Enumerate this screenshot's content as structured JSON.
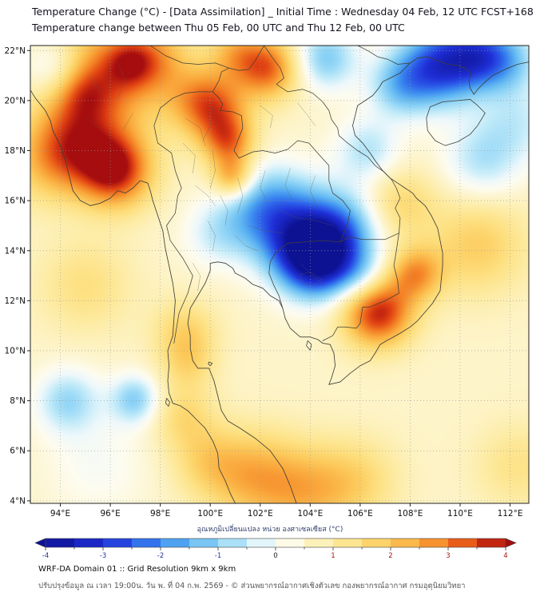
{
  "header": {
    "title_line1": "Temperature Change (°C) - [Data Assimilation] _ Initial Time : Wednesday 04 Feb, 12 UTC FCST+168",
    "title_line2": "Temperature change between Thu 05 Feb, 00 UTC and Thu 12 Feb, 00 UTC"
  },
  "map": {
    "lon_range": [
      92.8,
      112.75
    ],
    "lat_range": [
      3.9,
      22.2
    ],
    "grid_interval_deg": 2,
    "x_ticks": [
      {
        "value": 94,
        "label": "94°E"
      },
      {
        "value": 96,
        "label": "96°E"
      },
      {
        "value": 98,
        "label": "98°E"
      },
      {
        "value": 100,
        "label": "100°E"
      },
      {
        "value": 102,
        "label": "102°E"
      },
      {
        "value": 104,
        "label": "104°E"
      },
      {
        "value": 106,
        "label": "106°E"
      },
      {
        "value": 108,
        "label": "108°E"
      },
      {
        "value": 110,
        "label": "110°E"
      },
      {
        "value": 112,
        "label": "112°E"
      }
    ],
    "y_ticks": [
      {
        "value": 4,
        "label": "4°N"
      },
      {
        "value": 6,
        "label": "6°N"
      },
      {
        "value": 8,
        "label": "8°N"
      },
      {
        "value": 10,
        "label": "10°N"
      },
      {
        "value": 12,
        "label": "12°N"
      },
      {
        "value": 14,
        "label": "14°N"
      },
      {
        "value": 16,
        "label": "16°N"
      },
      {
        "value": 18,
        "label": "18°N"
      },
      {
        "value": 20,
        "label": "20°N"
      },
      {
        "value": 22,
        "label": "22°N"
      }
    ]
  },
  "colorbar": {
    "label": "อุณหภูมิเปลี่ยนแปลง หน่วย องศาเซลเซียส (°C)",
    "min": -4,
    "max": 4,
    "major_ticks": [
      -4,
      -3,
      -2,
      -1,
      0,
      1,
      2,
      3,
      4
    ],
    "minor_tick_step": 0.5,
    "stops": [
      [
        -4,
        "#0d1293"
      ],
      [
        -3,
        "#1f2fd6"
      ],
      [
        -2.5,
        "#2b59e8"
      ],
      [
        -2,
        "#3c8cf0"
      ],
      [
        -1.5,
        "#62b8f2"
      ],
      [
        -1,
        "#8fd4f6"
      ],
      [
        -0.5,
        "#c5ecf9"
      ],
      [
        -0.15,
        "#eef8fb"
      ],
      [
        0.15,
        "#fdfcf0"
      ],
      [
        0.5,
        "#fdf5cf"
      ],
      [
        1,
        "#fdeca4"
      ],
      [
        1.5,
        "#fddf7e"
      ],
      [
        2,
        "#fcc95a"
      ],
      [
        2.5,
        "#faa83c"
      ],
      [
        3,
        "#f27b22"
      ],
      [
        3.5,
        "#df3f12"
      ],
      [
        4,
        "#a50d0f"
      ]
    ],
    "tick_label_colors": {
      "negative": "#2433a0",
      "zero": "#222222",
      "positive": "#9c1408"
    }
  },
  "footer": {
    "line1": "WRF-DA Domain 01 :: Grid Resolution 9km x 9km",
    "line2": "ปรับปรุงข้อมูล ณ เวลา 19:00น. วัน พ. ที่ 04 ก.พ. 2569 - © ส่วนพยากรณ์อากาศเชิงตัวเลข กองพยากรณ์อากาศ กรมอุตุนิยมวิทยา"
  },
  "chart_data": {
    "type": "heatmap",
    "title": "Temperature change (°C) between Thu 05 Feb 00 UTC and Thu 12 Feb 00 UTC",
    "units": "°C",
    "value_range": [
      -4,
      4
    ],
    "base_value": 0.55,
    "anomaly_format": [
      "lon_e",
      "lat_n",
      "peak_c",
      "radius_deg"
    ],
    "anomalies": [
      [
        95.6,
        20.9,
        2.4,
        1.7
      ],
      [
        96.8,
        21.5,
        1.2,
        0.7
      ],
      [
        94.9,
        20.3,
        1.0,
        0.8
      ],
      [
        97.8,
        21.7,
        1.3,
        1.0
      ],
      [
        99.6,
        20.0,
        1.6,
        1.0
      ],
      [
        100.3,
        19.6,
        1.5,
        0.9
      ],
      [
        102.3,
        21.3,
        2.6,
        0.9
      ],
      [
        101.0,
        21.95,
        1.3,
        0.8
      ],
      [
        96.2,
        17.2,
        3.2,
        1.05
      ],
      [
        94.6,
        18.3,
        1.8,
        1.2
      ],
      [
        93.5,
        17.5,
        1.2,
        1.2
      ],
      [
        100.75,
        18.3,
        2.2,
        0.75
      ],
      [
        100.9,
        16.9,
        2.0,
        0.6
      ],
      [
        106.7,
        11.6,
        3.4,
        1.0
      ],
      [
        108.25,
        13.1,
        1.9,
        0.75
      ],
      [
        107.6,
        15.9,
        1.1,
        1.0
      ],
      [
        110.7,
        14.2,
        1.3,
        1.4
      ],
      [
        99.0,
        10.8,
        1.1,
        0.9
      ],
      [
        99.1,
        9.5,
        0.9,
        0.8
      ],
      [
        98.9,
        7.4,
        1.0,
        0.9
      ],
      [
        101.6,
        5.0,
        1.6,
        1.3
      ],
      [
        103.8,
        4.4,
        1.5,
        1.3
      ],
      [
        105.9,
        4.8,
        1.0,
        1.2
      ],
      [
        99.8,
        5.6,
        0.9,
        1.0
      ],
      [
        95.0,
        12.6,
        0.9,
        1.3
      ],
      [
        112.3,
        5.4,
        0.8,
        1.2
      ],
      [
        104.25,
        13.7,
        -4.6,
        1.05
      ],
      [
        103.2,
        15.0,
        -2.2,
        1.3
      ],
      [
        105.3,
        14.9,
        -1.8,
        1.1
      ],
      [
        101.9,
        15.8,
        -1.4,
        1.2
      ],
      [
        106.1,
        12.9,
        -1.2,
        0.8
      ],
      [
        109.2,
        21.4,
        -3.2,
        1.1
      ],
      [
        107.6,
        20.6,
        -1.6,
        0.9
      ],
      [
        110.7,
        21.8,
        -2.2,
        0.9
      ],
      [
        111.9,
        21.6,
        -1.5,
        0.9
      ],
      [
        112.3,
        19.2,
        -0.9,
        1.1
      ],
      [
        104.6,
        21.7,
        -1.7,
        0.9
      ],
      [
        106.3,
        18.0,
        -1.2,
        0.9
      ],
      [
        110.9,
        17.6,
        -1.2,
        1.1
      ],
      [
        97.0,
        8.05,
        -1.6,
        0.7
      ],
      [
        94.3,
        8.0,
        -1.4,
        0.9
      ],
      [
        93.8,
        21.3,
        -1.5,
        0.9
      ],
      [
        100.2,
        14.6,
        -0.8,
        0.9
      ],
      [
        95.5,
        5.5,
        -0.5,
        1.5
      ]
    ]
  }
}
